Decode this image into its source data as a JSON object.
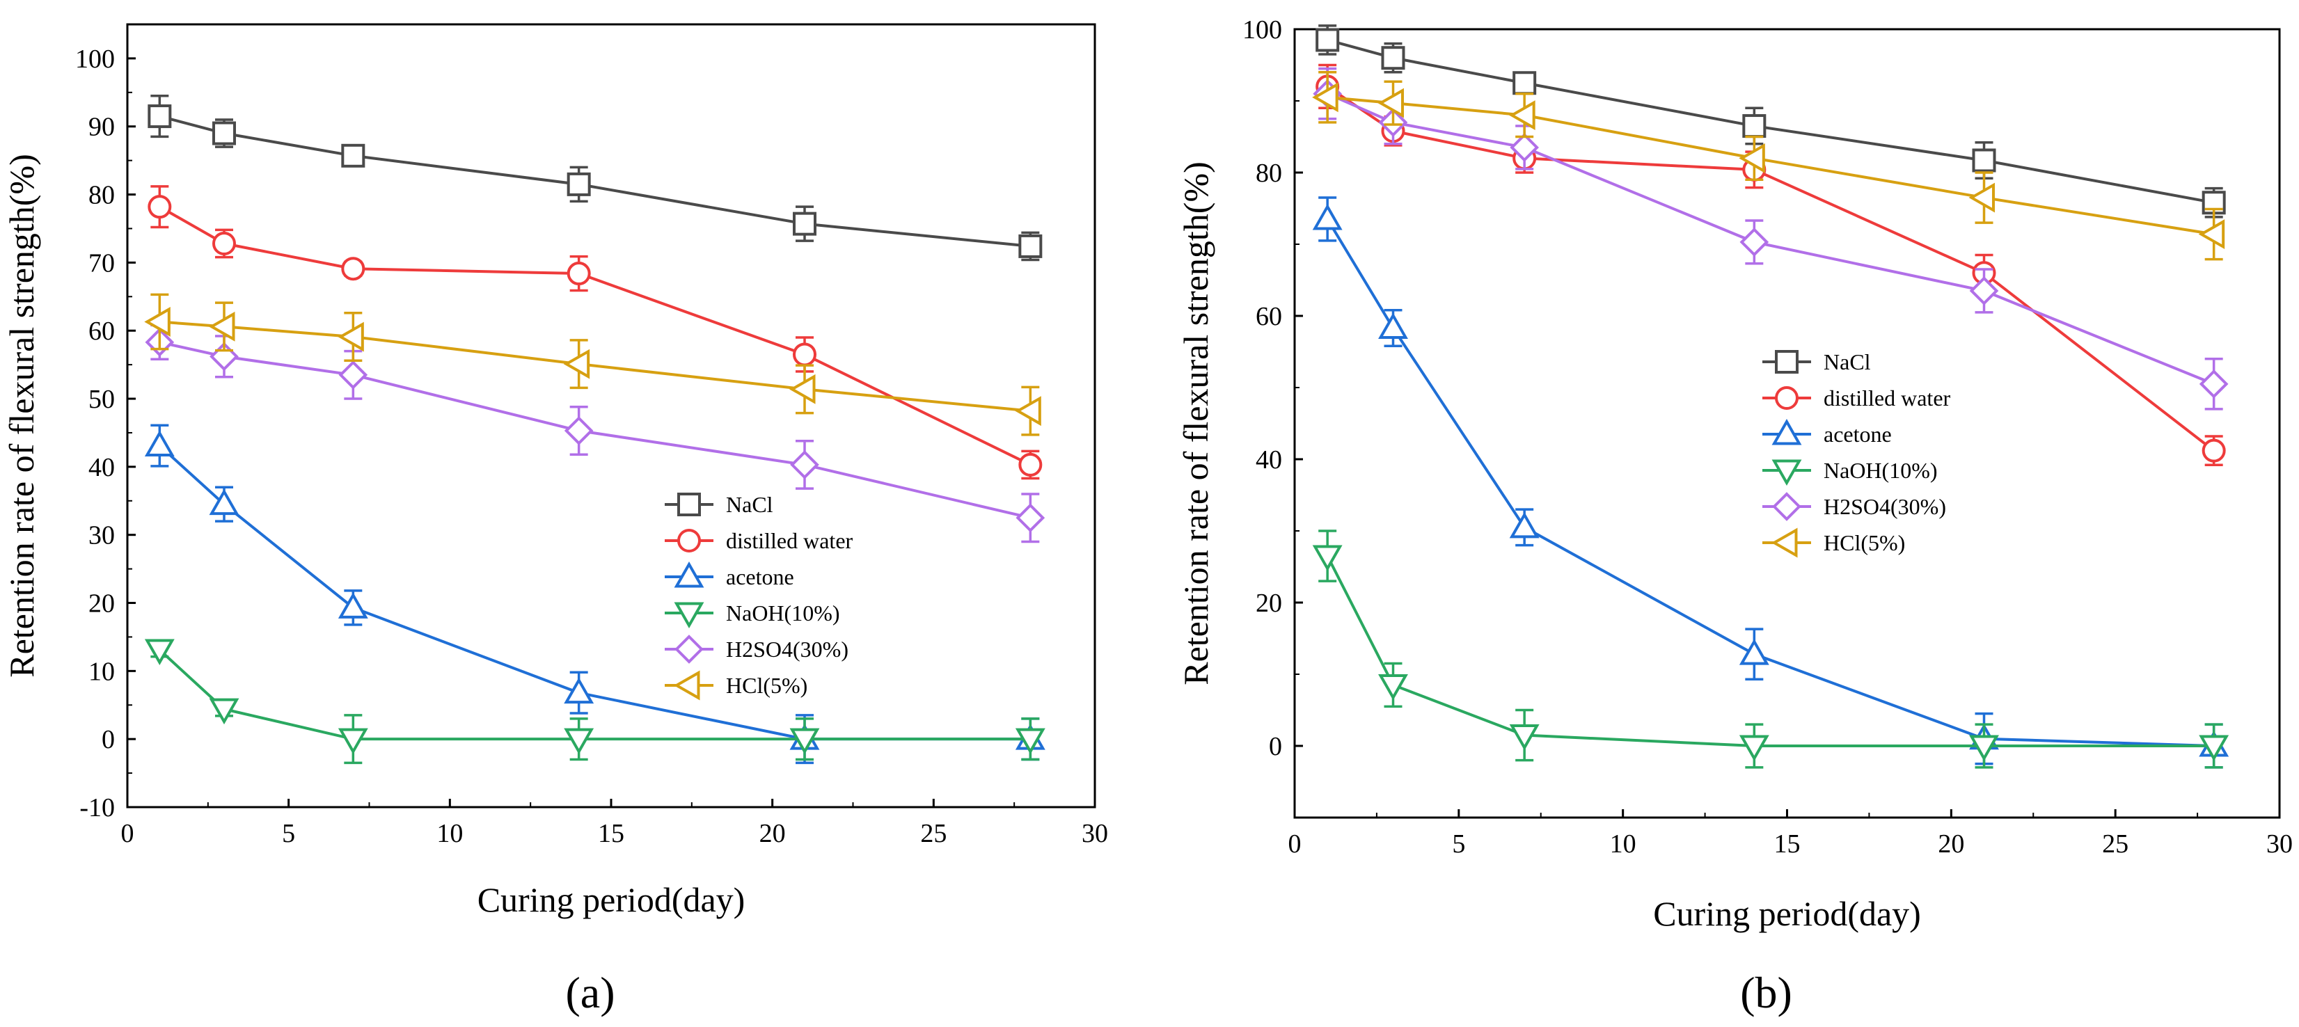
{
  "chart_data": [
    {
      "type": "line",
      "panel_label": "(a)",
      "xlabel": "Curing period(day)",
      "ylabel": "Retention rate of flexural strength(%)",
      "xlim": [
        0,
        30
      ],
      "ylim": [
        -10,
        105
      ],
      "xticks": [
        "0",
        "5",
        "10",
        "15",
        "20",
        "25",
        "30"
      ],
      "yticks": [
        "-10",
        "0",
        "10",
        "20",
        "30",
        "40",
        "50",
        "60",
        "70",
        "80",
        "90",
        "100"
      ],
      "legend_position": "center-right",
      "x": [
        1,
        3,
        7,
        14,
        21,
        28
      ],
      "series": [
        {
          "name": "NaCl",
          "marker": "square",
          "color": "#4a4a4a",
          "values": [
            91.5,
            89,
            85.7,
            81.5,
            75.7,
            72.4
          ],
          "errors": [
            3,
            2,
            1,
            2.5,
            2.5,
            2
          ]
        },
        {
          "name": "distilled water",
          "marker": "circle",
          "color": "#ee3b3b",
          "values": [
            78.2,
            72.8,
            69.1,
            68.4,
            56.5,
            40.3
          ],
          "errors": [
            3,
            2,
            1,
            2.5,
            2.5,
            2
          ]
        },
        {
          "name": "acetone",
          "marker": "triangle-up",
          "color": "#1f6fd6",
          "values": [
            43.1,
            34.5,
            19.3,
            6.8,
            0,
            0
          ],
          "errors": [
            3,
            2.5,
            2.5,
            3,
            3.5,
            3
          ]
        },
        {
          "name": "NaOH(10%)",
          "marker": "triangle-down",
          "color": "#2aa860",
          "values": [
            13.1,
            4.4,
            0,
            0,
            0,
            0
          ],
          "errors": [
            1,
            1,
            3.5,
            3,
            3,
            3
          ]
        },
        {
          "name": "H2SO4(30%)",
          "marker": "diamond",
          "color": "#b16fe8",
          "values": [
            58.3,
            56.2,
            53.5,
            45.3,
            40.3,
            32.5
          ],
          "errors": [
            2.5,
            3,
            3.5,
            3.5,
            3.5,
            3.5
          ]
        },
        {
          "name": "HCl(5%)",
          "marker": "triangle-left",
          "color": "#d7a011",
          "values": [
            61.3,
            60.6,
            59.1,
            55.1,
            51.4,
            48.2
          ],
          "errors": [
            4,
            3.5,
            3.5,
            3.5,
            3.5,
            3.5
          ]
        }
      ]
    },
    {
      "type": "line",
      "panel_label": "(b)",
      "xlabel": "Curing period(day)",
      "ylabel": "Retention rate of flexural strength(%)",
      "xlim": [
        0,
        30
      ],
      "ylim": [
        -10,
        100
      ],
      "xticks": [
        "0",
        "5",
        "10",
        "15",
        "20",
        "25",
        "30"
      ],
      "yticks": [
        "0",
        "20",
        "40",
        "60",
        "80",
        "100"
      ],
      "legend_position": "center",
      "x": [
        1,
        3,
        7,
        14,
        21,
        28
      ],
      "series": [
        {
          "name": "NaCl",
          "marker": "square",
          "color": "#4a4a4a",
          "values": [
            98.5,
            96,
            92.5,
            86.5,
            81.7,
            75.8
          ],
          "errors": [
            2,
            2,
            1,
            2.5,
            2.5,
            2
          ]
        },
        {
          "name": "distilled water",
          "marker": "circle",
          "color": "#ee3b3b",
          "values": [
            92,
            85.8,
            82,
            80.4,
            66,
            41.2
          ],
          "errors": [
            3,
            2,
            2,
            2.5,
            2.5,
            2
          ]
        },
        {
          "name": "acetone",
          "marker": "triangle-up",
          "color": "#1f6fd6",
          "values": [
            73.5,
            58.3,
            30.5,
            12.8,
            1,
            0
          ],
          "errors": [
            3,
            2.5,
            2.5,
            3.5,
            3.5,
            3
          ]
        },
        {
          "name": "NaOH(10%)",
          "marker": "triangle-down",
          "color": "#2aa860",
          "values": [
            26.5,
            8.5,
            1.5,
            0,
            0,
            0
          ],
          "errors": [
            3.5,
            3,
            3.5,
            3,
            3,
            3
          ]
        },
        {
          "name": "H2SO4(30%)",
          "marker": "diamond",
          "color": "#b16fe8",
          "values": [
            91,
            87,
            83.5,
            70.3,
            63.5,
            50.5
          ],
          "errors": [
            3.5,
            3,
            3,
            3,
            3,
            3.5
          ]
        },
        {
          "name": "HCl(5%)",
          "marker": "triangle-left",
          "color": "#d7a011",
          "values": [
            90.5,
            89.7,
            88,
            82,
            76.5,
            71.4
          ],
          "errors": [
            3.5,
            3,
            3,
            3,
            3.5,
            3.5
          ]
        }
      ]
    }
  ]
}
